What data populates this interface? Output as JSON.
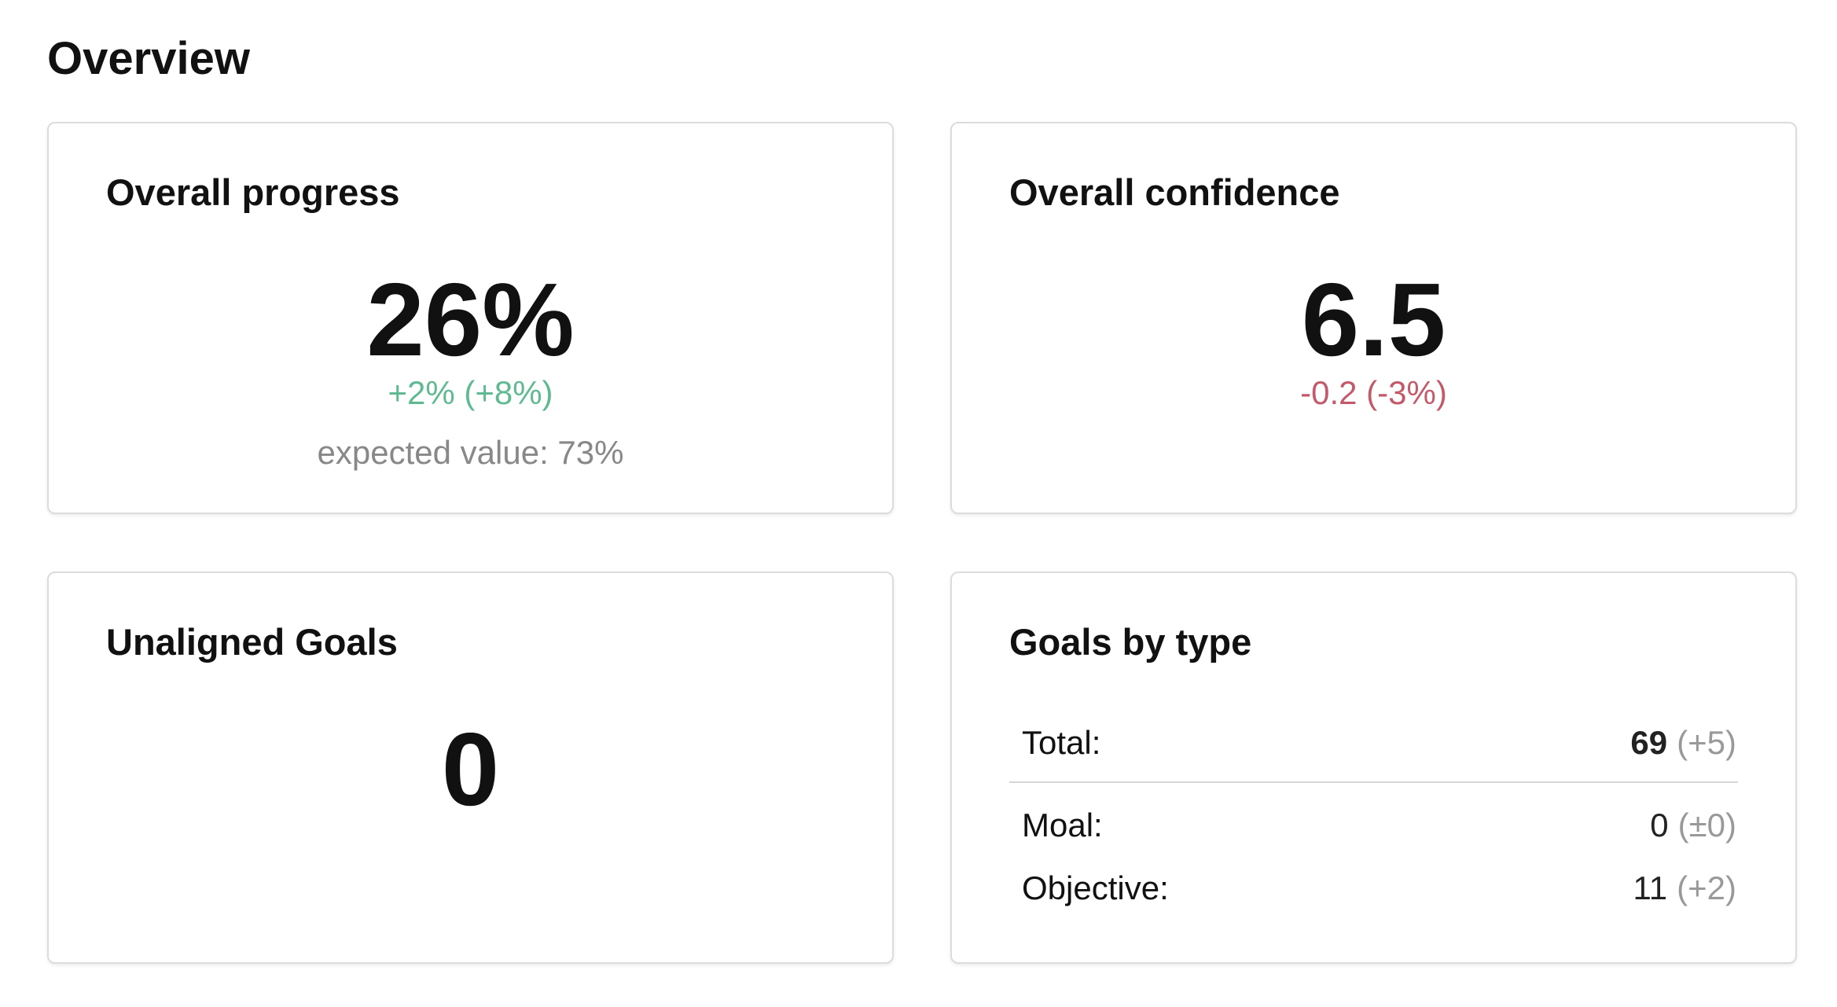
{
  "header": {
    "title": "Overview"
  },
  "cards": [
    {
      "title": "Overall progress",
      "value": "26%",
      "delta": "+2% (+8%)",
      "trend": "up",
      "expected": "expected value: 73%"
    },
    {
      "title": "Overall confidence",
      "value": "6.5",
      "delta": "-0.2 (-3%)",
      "trend": "down"
    },
    {
      "title": "Unaligned Goals",
      "value": "0"
    },
    {
      "title": "Goals by type",
      "rows": [
        {
          "label": "Total:",
          "count": "69",
          "change": "(+5)"
        },
        {
          "label": "Moal:",
          "count": "0",
          "change": "(±0)"
        },
        {
          "label": "Objective:",
          "count": "11",
          "change": "(+2)"
        }
      ]
    }
  ]
}
